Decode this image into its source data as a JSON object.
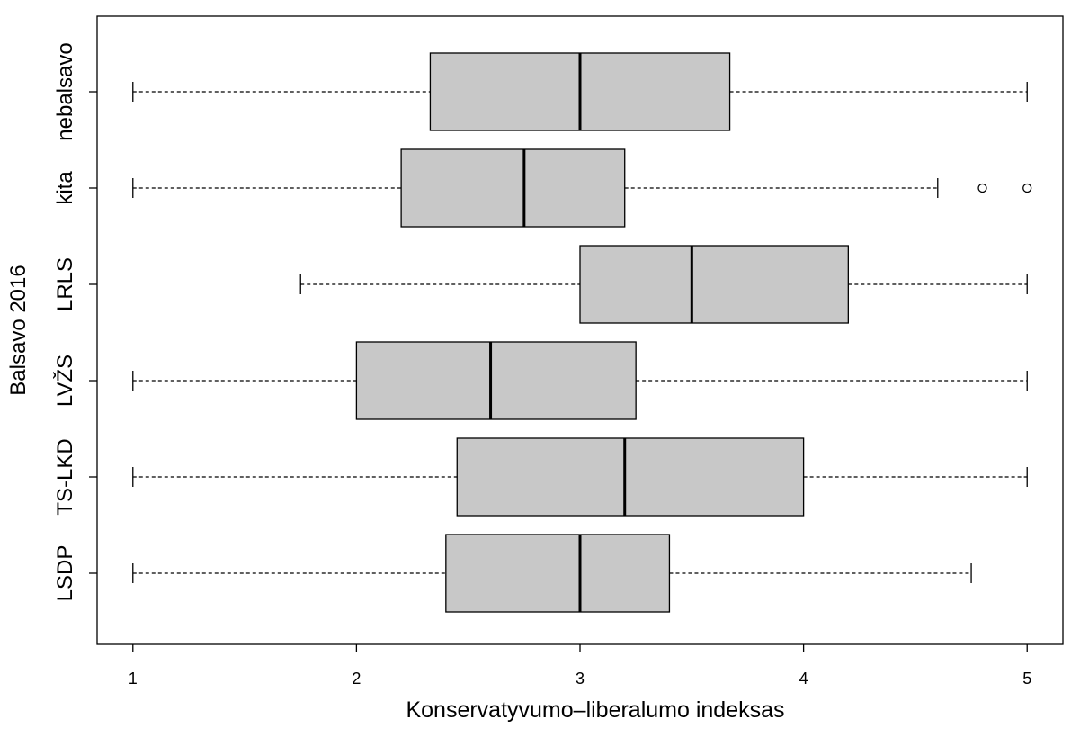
{
  "chart_data": {
    "type": "boxplot",
    "orientation": "horizontal",
    "xlabel": "Konservatyvumo–liberalumo indeksas",
    "ylabel": "Balsavo 2016",
    "categories": [
      "LSDP",
      "TS-LKD",
      "LVŽS",
      "LRLS",
      "kita",
      "nebalsavo"
    ],
    "boxes": [
      {
        "min": 1,
        "q1": 2.4,
        "median": 3,
        "q3": 3.4,
        "max": 4.75
      },
      {
        "min": 1,
        "q1": 2.45,
        "median": 3.2,
        "q3": 4,
        "max": 5
      },
      {
        "min": 1,
        "q1": 2,
        "median": 2.6,
        "q3": 3.25,
        "max": 5
      },
      {
        "min": 1.75,
        "q1": 3,
        "median": 3.5,
        "q3": 4.2,
        "max": 5
      },
      {
        "min": 1,
        "q1": 2.2,
        "median": 2.75,
        "q3": 3.2,
        "max": 4.6,
        "outliers": [
          4.8,
          5
        ]
      },
      {
        "min": 1,
        "q1": 2.33,
        "median": 3,
        "q3": 3.67,
        "max": 5
      }
    ],
    "color": "#c8c8c8",
    "xlim": [
      0.84,
      5.16
    ],
    "xticks": [
      1,
      2,
      3,
      4,
      5
    ]
  }
}
